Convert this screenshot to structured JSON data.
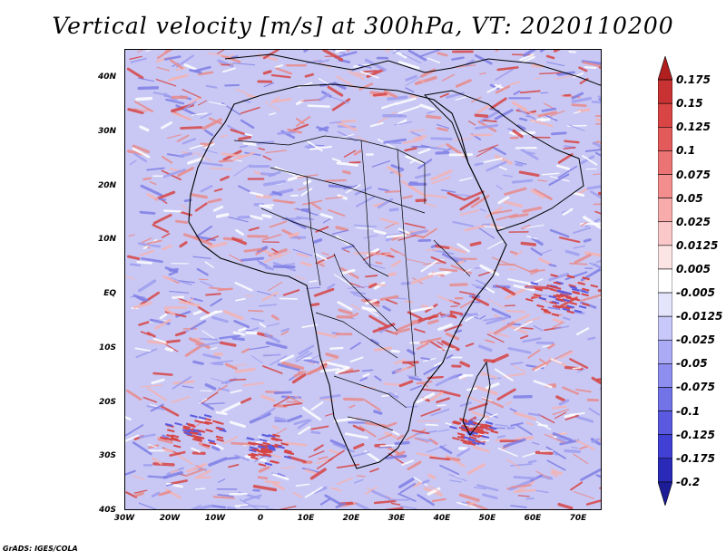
{
  "title": "Vertical velocity [m/s] at 300hPa, VT: 2020110200",
  "credit": "GrADS: IGES/COLA",
  "latitude_labels": [
    "40N",
    "30N",
    "20N",
    "10N",
    "EQ",
    "10S",
    "20S",
    "30S",
    "40S"
  ],
  "longitude_labels": [
    "30W",
    "20W",
    "10W",
    "0",
    "10E",
    "20E",
    "30E",
    "40E",
    "50E",
    "60E",
    "70E"
  ],
  "colorbar": {
    "labels": [
      "0.175",
      "0.15",
      "0.125",
      "0.1",
      "0.075",
      "0.05",
      "0.025",
      "0.0125",
      "0.005",
      "-0.005",
      "-0.0125",
      "-0.025",
      "-0.05",
      "-0.075",
      "-0.1",
      "-0.125",
      "-0.175",
      "-0.2"
    ],
    "colors": [
      "#b21f1f",
      "#c83232",
      "#d94545",
      "#e35a5a",
      "#ec7373",
      "#f48e8e",
      "#f7abab",
      "#fac8c8",
      "#fde4e4",
      "#ffffff",
      "#e4e4fd",
      "#c8c8fa",
      "#ababf5",
      "#8e8ef0",
      "#7373e8",
      "#5a5ae0",
      "#4040d4",
      "#2a2ab8",
      "#1c1c96"
    ]
  },
  "map": {
    "region": "Africa",
    "base_color": "#c9c8f4",
    "field_colors": [
      "#e88c8c",
      "#f4b4b4",
      "#ffffff",
      "#9e9ef0",
      "#7f7fe6",
      "#d64545"
    ]
  }
}
